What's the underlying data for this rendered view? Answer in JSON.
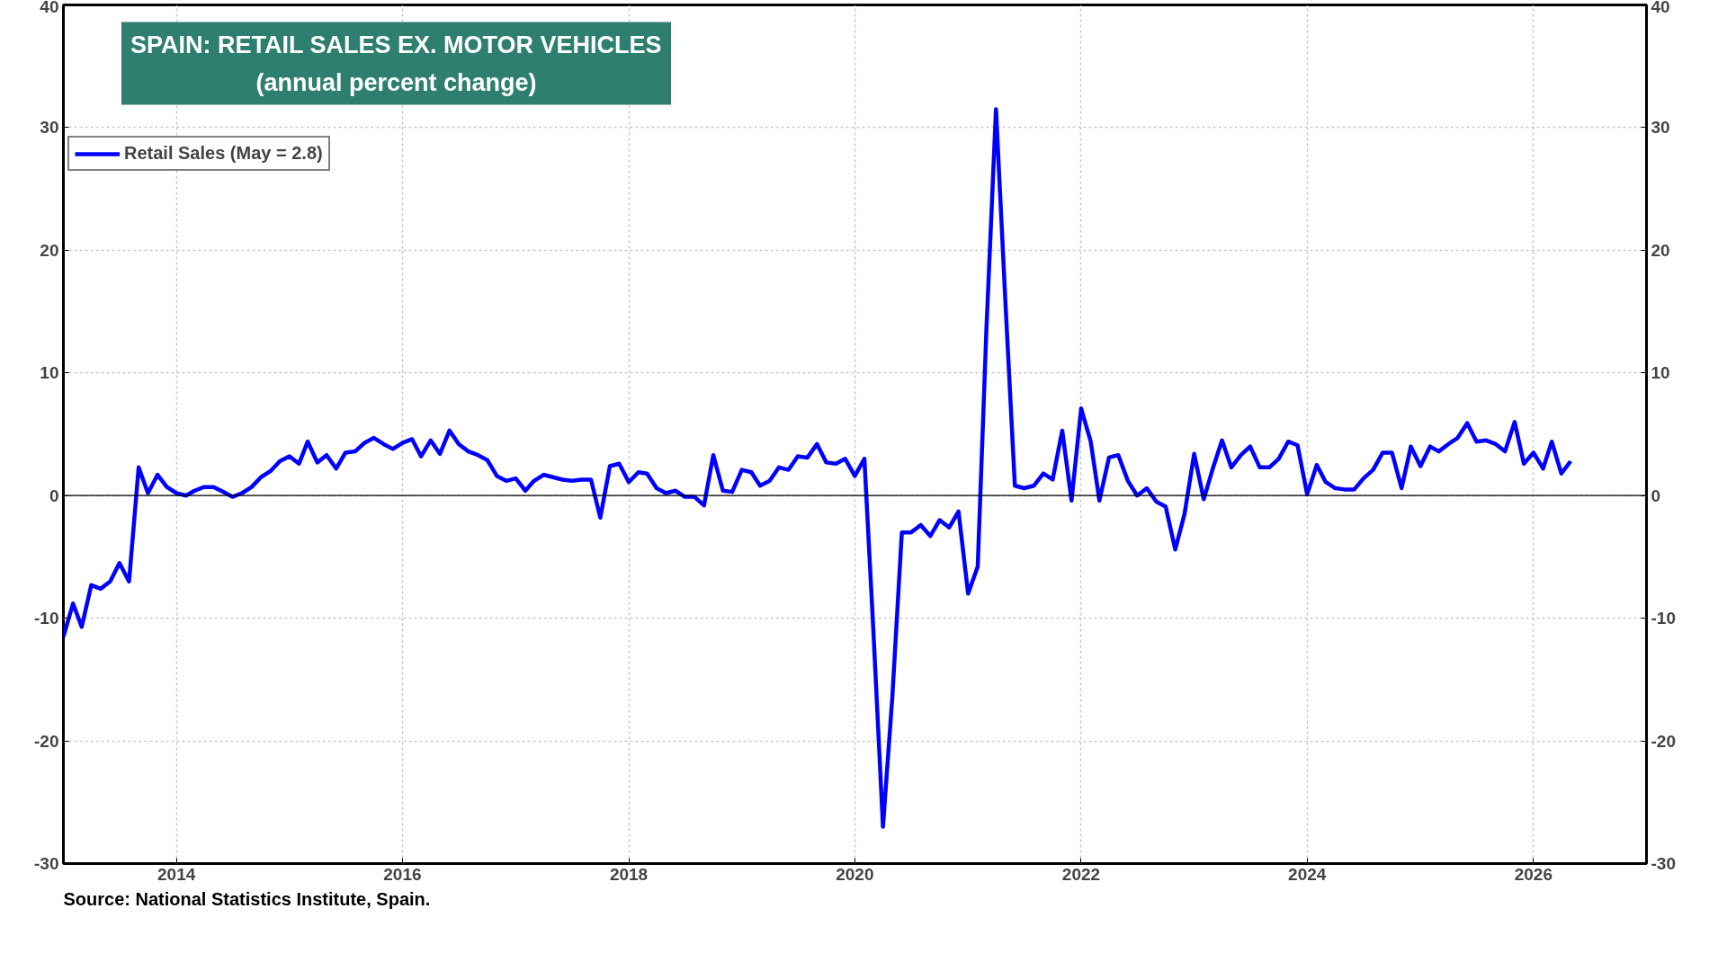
{
  "chart_data": {
    "type": "line",
    "title": "SPAIN: RETAIL SALES EX. MOTOR VEHICLES",
    "subtitle": "(annual percent change)",
    "annotations": [
      "Source: National Statistics Institute, Spain."
    ],
    "x": [
      "2013-01",
      "2013-02",
      "2013-03",
      "2013-04",
      "2013-05",
      "2013-06",
      "2013-07",
      "2013-08",
      "2013-09",
      "2013-10",
      "2013-11",
      "2013-12",
      "2014-01",
      "2014-02",
      "2014-03",
      "2014-04",
      "2014-05",
      "2014-06",
      "2014-07",
      "2014-08",
      "2014-09",
      "2014-10",
      "2014-11",
      "2014-12",
      "2015-01",
      "2015-02",
      "2015-03",
      "2015-04",
      "2015-05",
      "2015-06",
      "2015-07",
      "2015-08",
      "2015-09",
      "2015-10",
      "2015-11",
      "2015-12",
      "2016-01",
      "2016-02",
      "2016-03",
      "2016-04",
      "2016-05",
      "2016-06",
      "2016-07",
      "2016-08",
      "2016-09",
      "2016-10",
      "2016-11",
      "2016-12",
      "2017-01",
      "2017-02",
      "2017-03",
      "2017-04",
      "2017-05",
      "2017-06",
      "2017-07",
      "2017-08",
      "2017-09",
      "2017-10",
      "2017-11",
      "2017-12",
      "2018-01",
      "2018-02",
      "2018-03",
      "2018-04",
      "2018-05",
      "2018-06",
      "2018-07",
      "2018-08",
      "2018-09",
      "2018-10",
      "2018-11",
      "2018-12",
      "2019-01",
      "2019-02",
      "2019-03",
      "2019-04",
      "2019-05",
      "2019-06",
      "2019-07",
      "2019-08",
      "2019-09",
      "2019-10",
      "2019-11",
      "2019-12",
      "2020-01",
      "2020-02",
      "2020-03",
      "2020-04",
      "2020-05",
      "2020-06",
      "2020-07",
      "2020-08",
      "2020-09",
      "2020-10",
      "2020-11",
      "2020-12",
      "2021-01",
      "2021-02",
      "2021-03",
      "2021-04",
      "2021-05",
      "2021-06",
      "2021-07",
      "2021-08",
      "2021-09",
      "2021-10",
      "2021-11",
      "2021-12",
      "2022-01",
      "2022-02",
      "2022-03",
      "2022-04",
      "2022-05",
      "2022-06",
      "2022-07",
      "2022-08",
      "2022-09",
      "2022-10",
      "2022-11",
      "2022-12",
      "2023-01",
      "2023-02",
      "2023-03",
      "2023-04",
      "2023-05",
      "2023-06",
      "2023-07",
      "2023-08",
      "2023-09",
      "2023-10",
      "2023-11",
      "2023-12",
      "2024-01",
      "2024-02",
      "2024-03",
      "2024-04",
      "2024-05",
      "2024-06",
      "2024-07",
      "2024-08",
      "2024-09",
      "2024-10",
      "2024-11",
      "2024-12",
      "2025-01",
      "2025-02",
      "2025-03",
      "2025-04",
      "2025-05",
      "2025-06",
      "2025-07",
      "2025-08",
      "2025-09",
      "2025-10",
      "2025-11",
      "2025-12",
      "2026-01",
      "2026-02",
      "2026-03",
      "2026-04",
      "2026-05"
    ],
    "series": [
      {
        "name": "Retail Sales (May = 2.8)",
        "color": "#0000ff",
        "values": [
          -11.5,
          -8.8,
          -10.7,
          -7.3,
          -7.6,
          -7.0,
          -5.5,
          -7.0,
          2.3,
          0.2,
          1.7,
          0.7,
          0.2,
          0.0,
          0.4,
          0.7,
          0.7,
          0.3,
          -0.1,
          0.2,
          0.7,
          1.5,
          2.0,
          2.8,
          3.2,
          2.6,
          4.4,
          2.7,
          3.3,
          2.2,
          3.5,
          3.6,
          4.3,
          4.7,
          4.2,
          3.8,
          4.3,
          4.6,
          3.2,
          4.5,
          3.4,
          5.3,
          4.2,
          3.6,
          3.3,
          2.9,
          1.6,
          1.2,
          1.4,
          0.4,
          1.2,
          1.7,
          1.5,
          1.3,
          1.2,
          1.3,
          1.3,
          -1.8,
          2.4,
          2.6,
          1.1,
          1.9,
          1.8,
          0.6,
          0.2,
          0.4,
          -0.1,
          -0.1,
          -0.8,
          3.3,
          0.4,
          0.3,
          2.1,
          1.9,
          0.8,
          1.2,
          2.3,
          2.1,
          3.2,
          3.1,
          4.2,
          2.7,
          2.6,
          3.0,
          1.6,
          3.0,
          -11.0,
          -27.0,
          -16.5,
          -3.0,
          -3.0,
          -2.4,
          -3.3,
          -2.0,
          -2.6,
          -1.3,
          -8.0,
          -5.8,
          13.5,
          31.5,
          16.0,
          0.8,
          0.6,
          0.8,
          1.8,
          1.3,
          5.3,
          -0.4,
          7.1,
          4.4,
          -0.4,
          3.1,
          3.3,
          1.2,
          0.0,
          0.6,
          -0.5,
          -0.9,
          -4.4,
          -1.5,
          3.4,
          -0.3,
          2.1,
          4.5,
          2.3,
          3.3,
          4.0,
          2.3,
          2.3,
          3.0,
          4.4,
          4.1,
          0.1,
          2.5,
          1.1,
          0.6,
          0.5,
          0.5,
          1.4,
          2.1,
          3.5,
          3.5,
          0.6,
          4.0,
          2.4,
          4.0,
          3.6,
          4.2,
          4.7,
          5.9,
          4.4,
          4.5,
          4.2,
          3.6,
          6.0,
          2.6,
          3.5,
          2.2,
          4.4,
          1.8,
          2.8
        ]
      }
    ],
    "xlim": [
      "2013-01",
      "2027-01"
    ],
    "xticks": [
      "2014",
      "2016",
      "2018",
      "2020",
      "2022",
      "2024",
      "2026"
    ],
    "ylim": [
      -30,
      40
    ],
    "yticks": [
      -30,
      -20,
      -10,
      0,
      10,
      20,
      30,
      40
    ],
    "y2lim": [
      -30,
      40
    ],
    "y2ticks": [
      -30,
      -20,
      -10,
      0,
      10,
      20,
      30,
      40
    ],
    "ref_lines": [
      {
        "axis": "y",
        "value": 0,
        "color": "#000000"
      }
    ],
    "grid": true,
    "legend": "top left",
    "line_style": "solid"
  }
}
